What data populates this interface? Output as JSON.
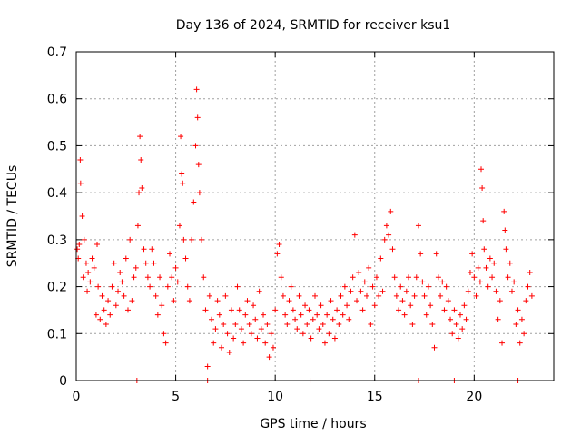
{
  "chart_data": {
    "type": "scatter",
    "title": "Day 136 of 2024, SRMTID for receiver ksu1",
    "xlabel": "GPS time / hours",
    "ylabel": "SRMTID / TECUs",
    "xlim": [
      0,
      24
    ],
    "ylim": [
      0,
      0.7
    ],
    "xticks": [
      0,
      5,
      10,
      15,
      20
    ],
    "yticks": [
      0,
      0.1,
      0.2,
      0.3,
      0.4,
      0.5,
      0.6,
      0.7
    ],
    "grid": true,
    "marker": "+",
    "color": "#ff0000",
    "series": [
      {
        "name": "SRMTID",
        "points": [
          [
            0.05,
            0.28
          ],
          [
            0.1,
            0.26
          ],
          [
            0.15,
            0.29
          ],
          [
            0.2,
            0.47
          ],
          [
            0.22,
            0.42
          ],
          [
            0.3,
            0.35
          ],
          [
            0.35,
            0.22
          ],
          [
            0.4,
            0.3
          ],
          [
            0.5,
            0.25
          ],
          [
            0.55,
            0.19
          ],
          [
            0.6,
            0.23
          ],
          [
            0.7,
            0.21
          ],
          [
            0.8,
            0.26
          ],
          [
            0.9,
            0.24
          ],
          [
            1.0,
            0.14
          ],
          [
            1.05,
            0.29
          ],
          [
            1.1,
            0.2
          ],
          [
            1.2,
            0.13
          ],
          [
            1.3,
            0.18
          ],
          [
            1.4,
            0.15
          ],
          [
            1.5,
            0.12
          ],
          [
            1.6,
            0.17
          ],
          [
            1.7,
            0.14
          ],
          [
            1.8,
            0.2
          ],
          [
            1.9,
            0.25
          ],
          [
            2.0,
            0.16
          ],
          [
            2.1,
            0.19
          ],
          [
            2.2,
            0.23
          ],
          [
            2.3,
            0.21
          ],
          [
            2.4,
            0.18
          ],
          [
            2.5,
            0.26
          ],
          [
            2.6,
            0.15
          ],
          [
            2.7,
            0.3
          ],
          [
            2.8,
            0.17
          ],
          [
            2.9,
            0.22
          ],
          [
            3.0,
            0.24
          ],
          [
            3.1,
            0.33
          ],
          [
            3.15,
            0.4
          ],
          [
            3.2,
            0.52
          ],
          [
            3.25,
            0.47
          ],
          [
            3.3,
            0.41
          ],
          [
            3.4,
            0.28
          ],
          [
            3.5,
            0.25
          ],
          [
            3.6,
            0.22
          ],
          [
            3.7,
            0.2
          ],
          [
            3.8,
            0.28
          ],
          [
            3.9,
            0.25
          ],
          [
            4.0,
            0.18
          ],
          [
            4.1,
            0.14
          ],
          [
            4.2,
            0.22
          ],
          [
            4.3,
            0.16
          ],
          [
            4.4,
            0.1
          ],
          [
            4.5,
            0.08
          ],
          [
            4.6,
            0.2
          ],
          [
            4.7,
            0.27
          ],
          [
            4.8,
            0.22
          ],
          [
            4.9,
            0.17
          ],
          [
            5.0,
            0.24
          ],
          [
            5.1,
            0.21
          ],
          [
            5.2,
            0.33
          ],
          [
            5.25,
            0.52
          ],
          [
            5.3,
            0.44
          ],
          [
            5.35,
            0.42
          ],
          [
            5.4,
            0.3
          ],
          [
            5.5,
            0.26
          ],
          [
            5.6,
            0.2
          ],
          [
            5.7,
            0.17
          ],
          [
            5.8,
            0.3
          ],
          [
            5.9,
            0.38
          ],
          [
            6.0,
            0.5
          ],
          [
            6.05,
            0.62
          ],
          [
            6.1,
            0.56
          ],
          [
            6.15,
            0.46
          ],
          [
            6.2,
            0.4
          ],
          [
            6.3,
            0.3
          ],
          [
            6.4,
            0.22
          ],
          [
            6.5,
            0.15
          ],
          [
            6.6,
            0.03
          ],
          [
            6.7,
            0.18
          ],
          [
            6.8,
            0.13
          ],
          [
            6.9,
            0.08
          ],
          [
            7.0,
            0.11
          ],
          [
            7.1,
            0.17
          ],
          [
            7.2,
            0.14
          ],
          [
            7.3,
            0.07
          ],
          [
            7.4,
            0.12
          ],
          [
            7.5,
            0.18
          ],
          [
            7.6,
            0.1
          ],
          [
            7.7,
            0.06
          ],
          [
            7.8,
            0.15
          ],
          [
            7.9,
            0.09
          ],
          [
            8.0,
            0.12
          ],
          [
            8.1,
            0.2
          ],
          [
            8.2,
            0.15
          ],
          [
            8.3,
            0.11
          ],
          [
            8.4,
            0.08
          ],
          [
            8.5,
            0.14
          ],
          [
            8.6,
            0.17
          ],
          [
            8.7,
            0.12
          ],
          [
            8.8,
            0.1
          ],
          [
            8.9,
            0.16
          ],
          [
            9.0,
            0.13
          ],
          [
            9.1,
            0.09
          ],
          [
            9.2,
            0.19
          ],
          [
            9.3,
            0.11
          ],
          [
            9.4,
            0.14
          ],
          [
            9.5,
            0.08
          ],
          [
            9.6,
            0.12
          ],
          [
            9.7,
            0.05
          ],
          [
            9.8,
            0.1
          ],
          [
            9.9,
            0.07
          ],
          [
            10.0,
            0.15
          ],
          [
            10.1,
            0.27
          ],
          [
            10.2,
            0.29
          ],
          [
            10.3,
            0.22
          ],
          [
            10.4,
            0.18
          ],
          [
            10.5,
            0.14
          ],
          [
            10.6,
            0.12
          ],
          [
            10.7,
            0.17
          ],
          [
            10.8,
            0.2
          ],
          [
            10.9,
            0.15
          ],
          [
            11.0,
            0.13
          ],
          [
            11.1,
            0.11
          ],
          [
            11.2,
            0.18
          ],
          [
            11.3,
            0.14
          ],
          [
            11.4,
            0.1
          ],
          [
            11.5,
            0.16
          ],
          [
            11.6,
            0.12
          ],
          [
            11.7,
            0.15
          ],
          [
            11.8,
            0.09
          ],
          [
            11.9,
            0.13
          ],
          [
            12.0,
            0.18
          ],
          [
            12.1,
            0.14
          ],
          [
            12.2,
            0.11
          ],
          [
            12.3,
            0.16
          ],
          [
            12.4,
            0.12
          ],
          [
            12.5,
            0.08
          ],
          [
            12.6,
            0.14
          ],
          [
            12.7,
            0.1
          ],
          [
            12.8,
            0.17
          ],
          [
            12.9,
            0.13
          ],
          [
            13.0,
            0.09
          ],
          [
            13.1,
            0.15
          ],
          [
            13.2,
            0.12
          ],
          [
            13.3,
            0.18
          ],
          [
            13.4,
            0.14
          ],
          [
            13.5,
            0.2
          ],
          [
            13.6,
            0.16
          ],
          [
            13.7,
            0.13
          ],
          [
            13.8,
            0.19
          ],
          [
            13.9,
            0.22
          ],
          [
            14.0,
            0.31
          ],
          [
            14.1,
            0.17
          ],
          [
            14.2,
            0.23
          ],
          [
            14.3,
            0.19
          ],
          [
            14.4,
            0.15
          ],
          [
            14.5,
            0.21
          ],
          [
            14.6,
            0.18
          ],
          [
            14.7,
            0.24
          ],
          [
            14.8,
            0.12
          ],
          [
            14.9,
            0.2
          ],
          [
            15.0,
            0.16
          ],
          [
            15.1,
            0.22
          ],
          [
            15.2,
            0.18
          ],
          [
            15.3,
            0.26
          ],
          [
            15.4,
            0.19
          ],
          [
            15.5,
            0.3
          ],
          [
            15.6,
            0.33
          ],
          [
            15.7,
            0.31
          ],
          [
            15.8,
            0.36
          ],
          [
            15.9,
            0.28
          ],
          [
            16.0,
            0.22
          ],
          [
            16.1,
            0.18
          ],
          [
            16.2,
            0.15
          ],
          [
            16.3,
            0.2
          ],
          [
            16.4,
            0.17
          ],
          [
            16.5,
            0.14
          ],
          [
            16.6,
            0.19
          ],
          [
            16.7,
            0.22
          ],
          [
            16.8,
            0.16
          ],
          [
            16.9,
            0.12
          ],
          [
            17.0,
            0.18
          ],
          [
            17.1,
            0.22
          ],
          [
            17.2,
            0.33
          ],
          [
            17.3,
            0.27
          ],
          [
            17.4,
            0.21
          ],
          [
            17.5,
            0.18
          ],
          [
            17.6,
            0.14
          ],
          [
            17.7,
            0.2
          ],
          [
            17.8,
            0.16
          ],
          [
            17.9,
            0.12
          ],
          [
            18.0,
            0.07
          ],
          [
            18.1,
            0.27
          ],
          [
            18.2,
            0.22
          ],
          [
            18.3,
            0.18
          ],
          [
            18.4,
            0.21
          ],
          [
            18.5,
            0.15
          ],
          [
            18.6,
            0.2
          ],
          [
            18.7,
            0.17
          ],
          [
            18.8,
            0.13
          ],
          [
            18.9,
            0.1
          ],
          [
            19.0,
            0.15
          ],
          [
            19.1,
            0.12
          ],
          [
            19.2,
            0.09
          ],
          [
            19.3,
            0.14
          ],
          [
            19.4,
            0.11
          ],
          [
            19.5,
            0.16
          ],
          [
            19.6,
            0.13
          ],
          [
            19.7,
            0.19
          ],
          [
            19.8,
            0.23
          ],
          [
            19.9,
            0.27
          ],
          [
            20.0,
            0.22
          ],
          [
            20.1,
            0.18
          ],
          [
            20.2,
            0.24
          ],
          [
            20.3,
            0.21
          ],
          [
            20.35,
            0.45
          ],
          [
            20.4,
            0.41
          ],
          [
            20.45,
            0.34
          ],
          [
            20.5,
            0.28
          ],
          [
            20.6,
            0.24
          ],
          [
            20.7,
            0.2
          ],
          [
            20.8,
            0.26
          ],
          [
            20.9,
            0.22
          ],
          [
            21.0,
            0.25
          ],
          [
            21.1,
            0.19
          ],
          [
            21.2,
            0.13
          ],
          [
            21.3,
            0.17
          ],
          [
            21.4,
            0.08
          ],
          [
            21.5,
            0.36
          ],
          [
            21.55,
            0.32
          ],
          [
            21.6,
            0.28
          ],
          [
            21.7,
            0.22
          ],
          [
            21.8,
            0.25
          ],
          [
            21.9,
            0.19
          ],
          [
            22.0,
            0.21
          ],
          [
            22.1,
            0.12
          ],
          [
            22.2,
            0.15
          ],
          [
            22.3,
            0.08
          ],
          [
            22.4,
            0.13
          ],
          [
            22.5,
            0.1
          ],
          [
            22.6,
            0.17
          ],
          [
            22.7,
            0.2
          ],
          [
            22.8,
            0.23
          ],
          [
            22.9,
            0.18
          ],
          [
            3.05,
            0.0
          ],
          [
            6.6,
            0.0
          ],
          [
            11.75,
            0.0
          ],
          [
            17.2,
            0.0
          ],
          [
            19.0,
            0.0
          ],
          [
            22.2,
            0.0
          ]
        ]
      }
    ]
  }
}
